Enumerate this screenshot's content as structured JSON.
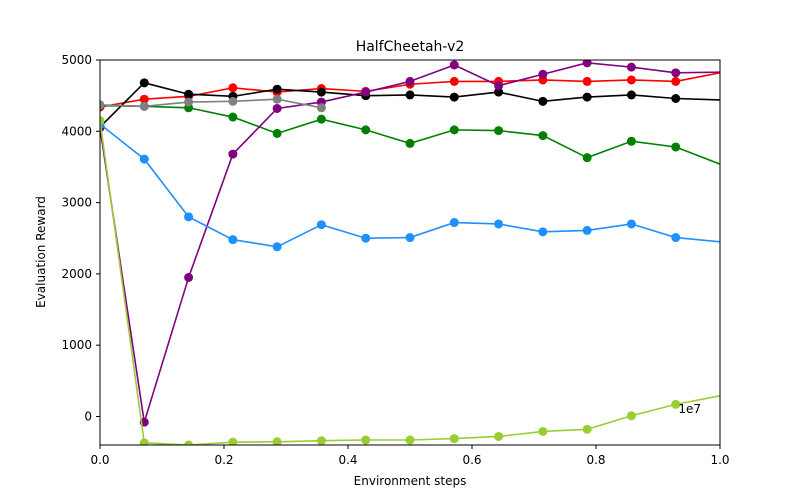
{
  "chart_data": {
    "type": "line",
    "title": "HalfCheetah-v2",
    "xlabel": "Environment steps",
    "ylabel": "Evaluation Reward",
    "x_scale_label": "1e7",
    "xlim": [
      0.0,
      1.0
    ],
    "ylim": [
      -400,
      5000
    ],
    "xticks": [
      "0.0",
      "0.2",
      "0.4",
      "0.6",
      "0.8",
      "1.0"
    ],
    "yticks": [
      "0",
      "1000",
      "2000",
      "3000",
      "4000",
      "5000"
    ],
    "grid": false,
    "legend": "none",
    "series": [
      {
        "color": "#ff0000",
        "x": [
          0,
          0.0714,
          0.1429,
          0.2143,
          0.2857,
          0.3571,
          0.4286,
          0.5,
          0.5714,
          0.6429,
          0.7143,
          0.7857,
          0.8571,
          0.9286,
          1.0
        ],
        "y": [
          4340,
          4450,
          4490,
          4610,
          4550,
          4600,
          4560,
          4660,
          4700,
          4700,
          4720,
          4700,
          4720,
          4700,
          4820
        ],
        "markers": [
          true,
          true,
          true,
          true,
          true,
          true,
          true,
          true,
          true,
          true,
          true,
          true,
          true,
          true,
          false
        ]
      },
      {
        "color": "#000000",
        "x": [
          0,
          0.0714,
          0.1429,
          0.2143,
          0.2857,
          0.3571,
          0.4286,
          0.5,
          0.5714,
          0.6429,
          0.7143,
          0.7857,
          0.8571,
          0.9286,
          1.0
        ],
        "y": [
          4060,
          4680,
          4520,
          4490,
          4590,
          4550,
          4500,
          4510,
          4480,
          4550,
          4420,
          4480,
          4510,
          4460,
          4440
        ],
        "markers": [
          true,
          true,
          true,
          true,
          true,
          true,
          true,
          true,
          true,
          true,
          true,
          true,
          true,
          true,
          false
        ]
      },
      {
        "color": "#008000",
        "x": [
          0,
          0.0714,
          0.1429,
          0.2143,
          0.2857,
          0.3571,
          0.4286,
          0.5,
          0.5714,
          0.6429,
          0.7143,
          0.7857,
          0.8571,
          0.9286,
          1.0
        ],
        "y": [
          4360,
          4350,
          4330,
          4200,
          3970,
          4170,
          4020,
          3830,
          4020,
          4010,
          3940,
          3630,
          3860,
          3780,
          3540
        ],
        "markers": [
          true,
          true,
          true,
          true,
          true,
          true,
          true,
          true,
          true,
          true,
          true,
          true,
          true,
          true,
          false
        ]
      },
      {
        "color": "#800080",
        "x": [
          0,
          0.0714,
          0.1429,
          0.2143,
          0.2857,
          0.3571,
          0.4286,
          0.5,
          0.5714,
          0.6429,
          0.7143,
          0.7857,
          0.8571,
          0.9286,
          1.0
        ],
        "y": [
          4050,
          -80,
          1950,
          3680,
          4320,
          4410,
          4550,
          4700,
          4930,
          4640,
          4800,
          4960,
          4900,
          4820,
          4830
        ],
        "markers": [
          true,
          true,
          true,
          true,
          true,
          true,
          true,
          true,
          true,
          true,
          true,
          true,
          true,
          true,
          false
        ]
      },
      {
        "color": "#1e90ff",
        "x": [
          0,
          0.0714,
          0.1429,
          0.2143,
          0.2857,
          0.3571,
          0.4286,
          0.5,
          0.5714,
          0.6429,
          0.7143,
          0.7857,
          0.8571,
          0.9286,
          1.0
        ],
        "y": [
          4100,
          3610,
          2800,
          2480,
          2380,
          2690,
          2500,
          2510,
          2720,
          2700,
          2590,
          2610,
          2700,
          2510,
          2450
        ],
        "markers": [
          true,
          true,
          true,
          true,
          true,
          true,
          true,
          true,
          true,
          true,
          true,
          true,
          true,
          true,
          false
        ]
      },
      {
        "color": "#9acd32",
        "x": [
          0,
          0.0714,
          0.1429,
          0.2143,
          0.2857,
          0.3571,
          0.4286,
          0.5,
          0.5714,
          0.6429,
          0.7143,
          0.7857,
          0.8571,
          0.9286,
          1.0
        ],
        "y": [
          4150,
          -370,
          -400,
          -360,
          -355,
          -340,
          -330,
          -330,
          -310,
          -280,
          -210,
          -180,
          10,
          170,
          290
        ],
        "markers": [
          true,
          true,
          true,
          true,
          true,
          true,
          true,
          true,
          true,
          true,
          true,
          true,
          true,
          true,
          false
        ]
      },
      {
        "color": "#808080",
        "x": [
          0,
          0.0714,
          0.1429,
          0.2143,
          0.2857,
          0.3571
        ],
        "y": [
          4370,
          4350,
          4410,
          4420,
          4450,
          4330
        ],
        "markers": [
          true,
          true,
          true,
          true,
          true,
          true
        ]
      }
    ]
  }
}
